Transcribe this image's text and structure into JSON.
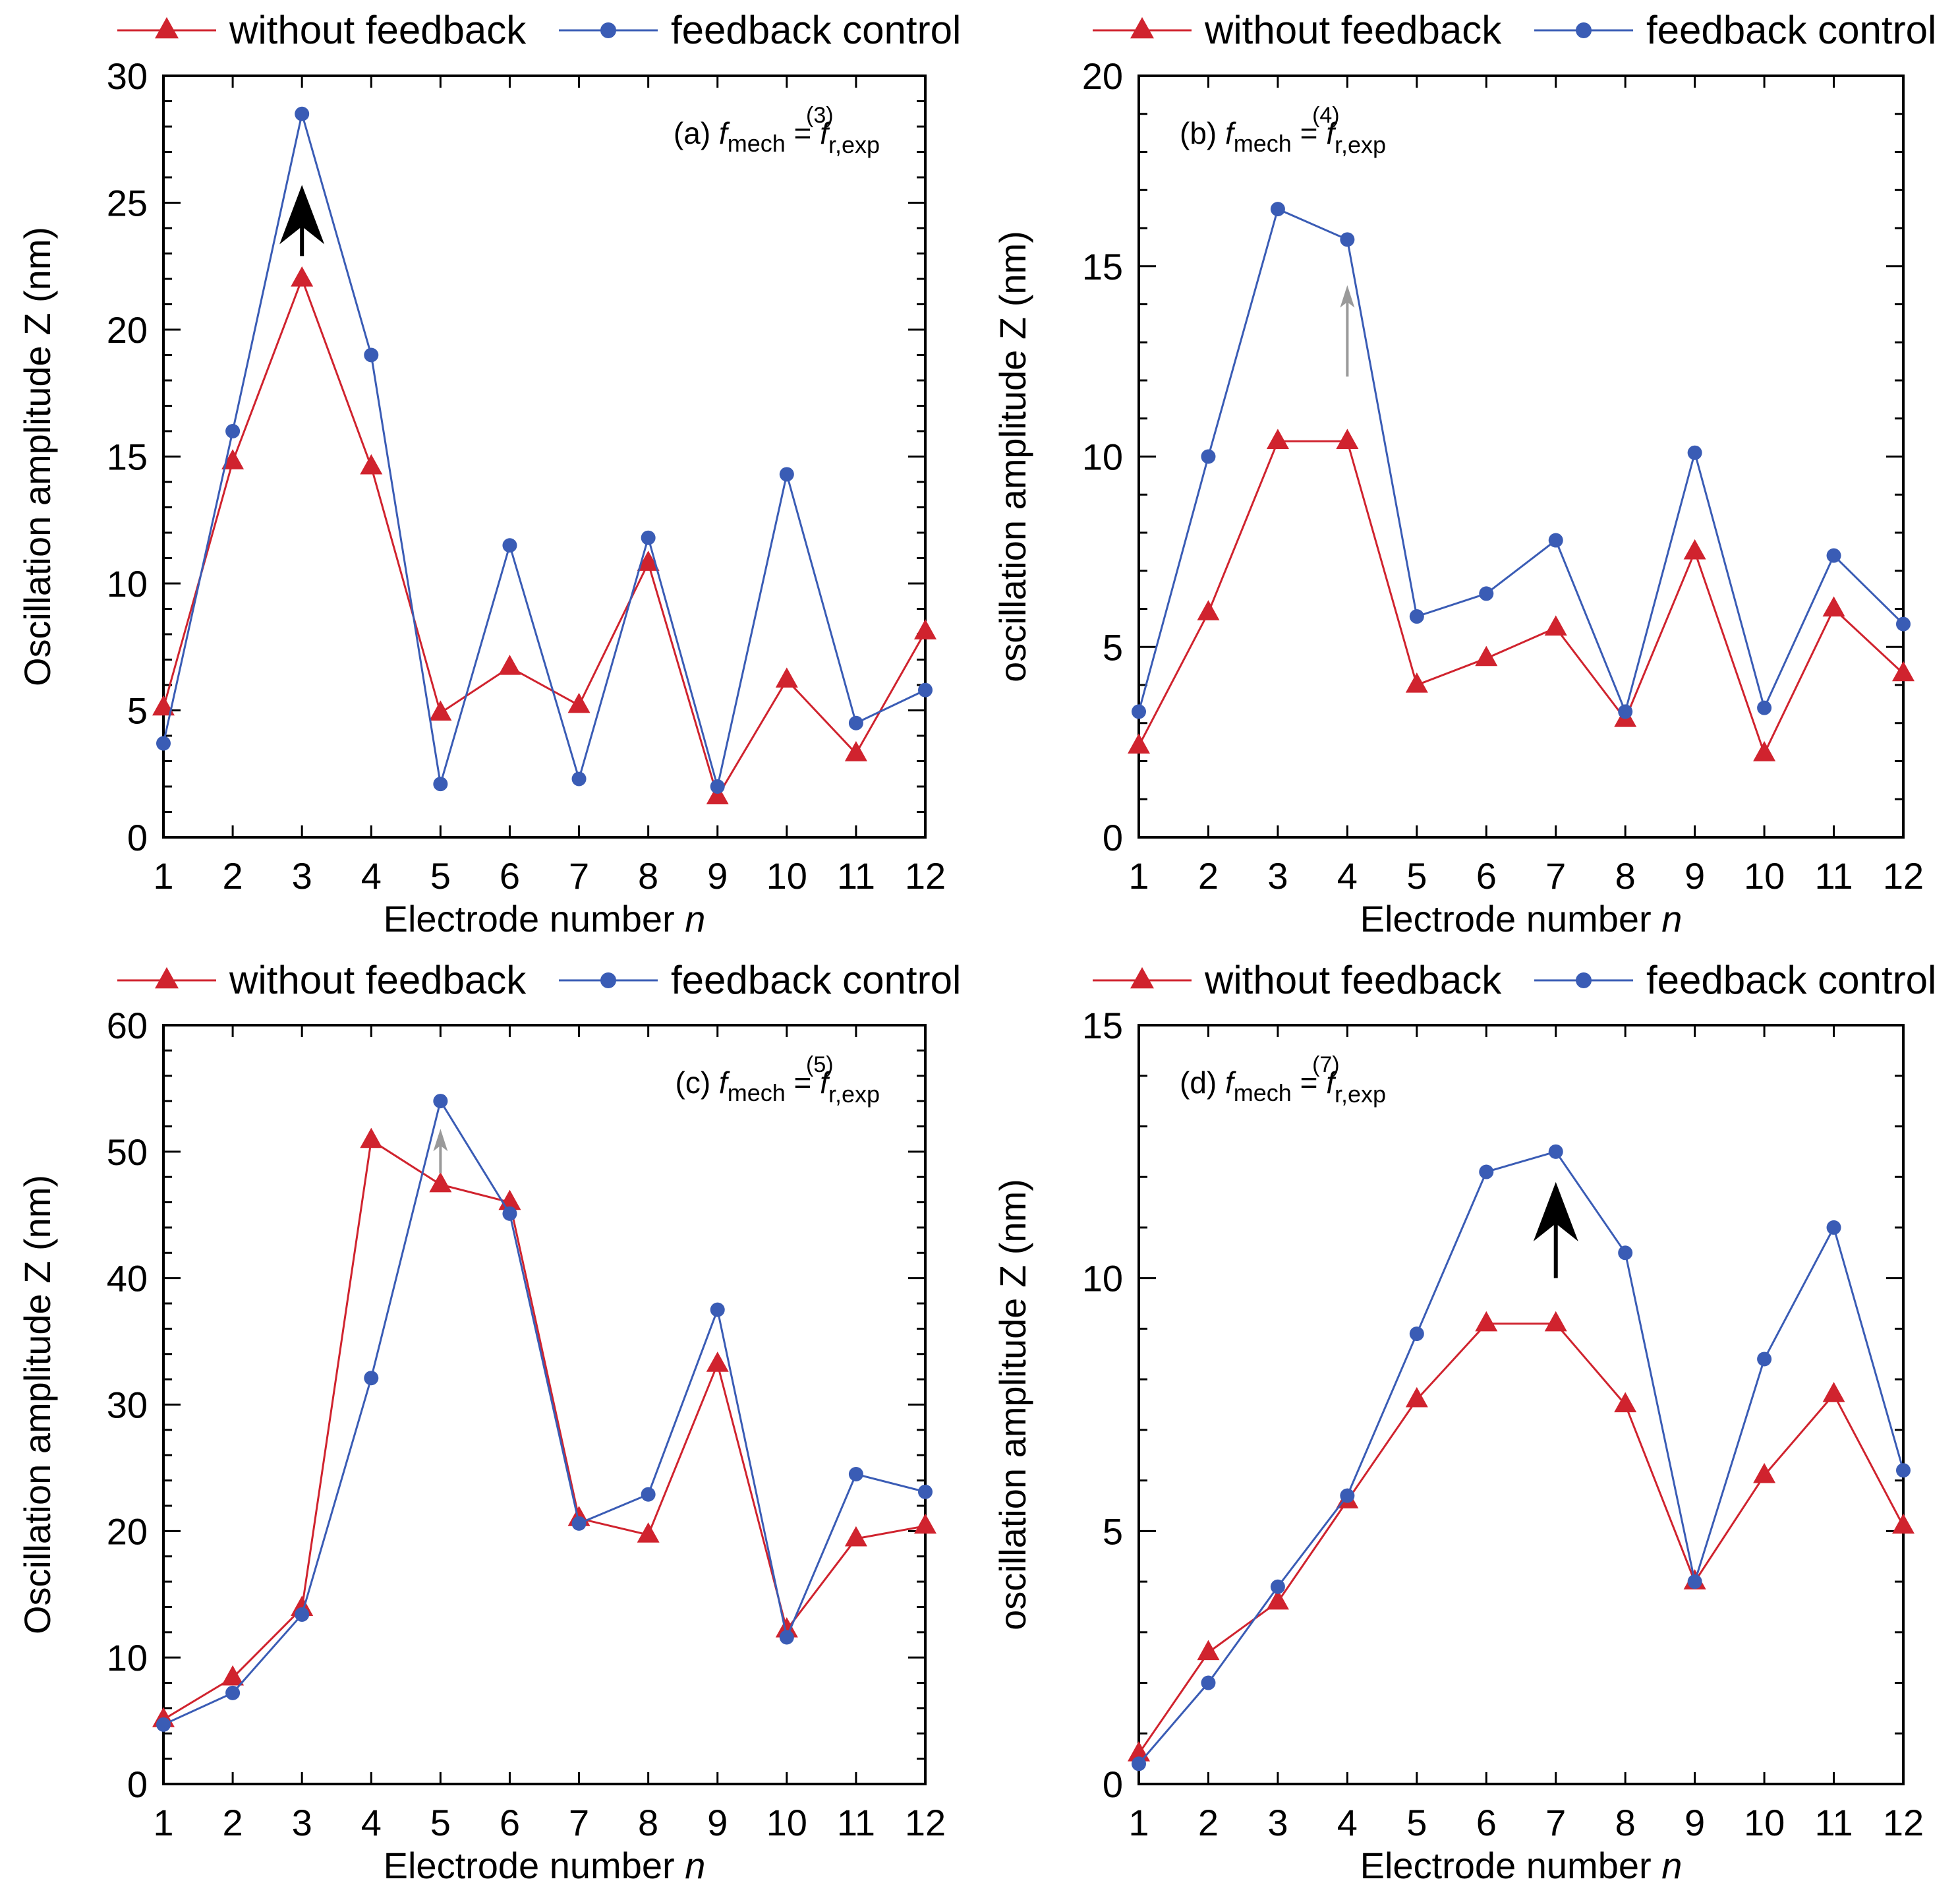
{
  "colors": {
    "without": "#d0232e",
    "feedback": "#3a5cb5",
    "arrow_black": "#000000",
    "arrow_gray": "#9a9a9a"
  },
  "chart_data": [
    {
      "type": "line",
      "panel": "a",
      "annotation": {
        "prefix": "(a) ",
        "f": "f",
        "mech": "mech",
        "eq": " = ",
        "fr": "f",
        "sub": "r,exp",
        "sup": "(3)"
      },
      "xlabel": "Electrode number ",
      "xlabel_italic": "n",
      "ylabel": "Oscillation amplitude Z (nm)",
      "ylim": [
        0,
        30
      ],
      "yticks": [
        0,
        5,
        10,
        15,
        20,
        25,
        30
      ],
      "x": [
        1,
        2,
        3,
        4,
        5,
        6,
        7,
        8,
        9,
        10,
        11,
        12
      ],
      "series": [
        {
          "name": "without feedback",
          "values": [
            5.1,
            14.8,
            22.0,
            14.6,
            4.9,
            6.7,
            5.2,
            10.8,
            1.6,
            6.2,
            3.3,
            8.1
          ]
        },
        {
          "name": "feedback control",
          "values": [
            3.7,
            16.0,
            28.5,
            19.0,
            2.1,
            11.5,
            2.3,
            11.8,
            2.0,
            14.3,
            4.5,
            5.8
          ]
        }
      ],
      "arrow": {
        "x": 3,
        "from": 22.9,
        "to": 25.7,
        "style": "black"
      }
    },
    {
      "type": "line",
      "panel": "b",
      "annotation": {
        "prefix": "(b) ",
        "f": "f",
        "mech": "mech",
        "eq": " = ",
        "fr": "f",
        "sub": "r,exp",
        "sup": "(4)"
      },
      "xlabel": "Electrode number ",
      "xlabel_italic": "n",
      "ylabel": "oscillation amplitude Z (nm)",
      "ylim": [
        0,
        20
      ],
      "yticks": [
        0,
        5,
        10,
        15,
        20
      ],
      "x": [
        1,
        2,
        3,
        4,
        5,
        6,
        7,
        8,
        9,
        10,
        11,
        12
      ],
      "series": [
        {
          "name": "without feedback",
          "values": [
            2.4,
            5.9,
            10.4,
            10.4,
            4.0,
            4.7,
            5.5,
            3.1,
            7.5,
            2.2,
            6.0,
            4.3
          ]
        },
        {
          "name": "feedback control",
          "values": [
            3.3,
            10.0,
            16.5,
            15.7,
            5.8,
            6.4,
            7.8,
            3.3,
            10.1,
            3.4,
            7.4,
            5.6
          ]
        }
      ],
      "arrow": {
        "x": 4,
        "from": 12.1,
        "to": 14.5,
        "style": "gray"
      }
    },
    {
      "type": "line",
      "panel": "c",
      "annotation": {
        "prefix": "(c) ",
        "f": "f",
        "mech": "mech",
        "eq": " = ",
        "fr": "f",
        "sub": "r,exp",
        "sup": "(5)"
      },
      "xlabel": "Electrode number ",
      "xlabel_italic": "n",
      "ylabel": "Oscillation amplitude Z (nm)",
      "ylim": [
        0,
        60
      ],
      "yticks": [
        0,
        10,
        20,
        30,
        40,
        50,
        60
      ],
      "x": [
        1,
        2,
        3,
        4,
        5,
        6,
        7,
        8,
        9,
        10,
        11,
        12
      ],
      "series": [
        {
          "name": "without feedback",
          "values": [
            5.1,
            8.4,
            13.9,
            50.9,
            47.4,
            46.0,
            21.0,
            19.7,
            33.2,
            12.2,
            19.4,
            20.4
          ]
        },
        {
          "name": "feedback control",
          "values": [
            4.7,
            7.2,
            13.4,
            32.1,
            54.0,
            45.1,
            20.6,
            22.9,
            37.5,
            11.6,
            24.5,
            23.1
          ]
        }
      ],
      "arrow": {
        "x": 5,
        "from": 48.3,
        "to": 51.8,
        "style": "gray"
      }
    },
    {
      "type": "line",
      "panel": "d",
      "annotation": {
        "prefix": "(d) ",
        "f": "f",
        "mech": "mech",
        "eq": " = ",
        "fr": "f",
        "sub": "r,exp",
        "sup": "(7)"
      },
      "xlabel": "Electrode number ",
      "xlabel_italic": "n",
      "ylabel": "oscillation amplitude Z (nm)",
      "ylim": [
        0,
        15
      ],
      "yticks": [
        0,
        5,
        10,
        15
      ],
      "x": [
        1,
        2,
        3,
        4,
        5,
        6,
        7,
        8,
        9,
        10,
        11,
        12
      ],
      "series": [
        {
          "name": "without feedback",
          "values": [
            0.6,
            2.6,
            3.6,
            5.6,
            7.6,
            9.1,
            9.1,
            7.5,
            4.0,
            6.1,
            7.7,
            5.1
          ]
        },
        {
          "name": "feedback control",
          "values": [
            0.4,
            2.0,
            3.9,
            5.7,
            8.9,
            12.1,
            12.5,
            10.5,
            4.0,
            8.4,
            11.0,
            6.2
          ]
        }
      ],
      "arrow": {
        "x": 7,
        "from": 10.0,
        "to": 11.9,
        "style": "black"
      }
    }
  ]
}
